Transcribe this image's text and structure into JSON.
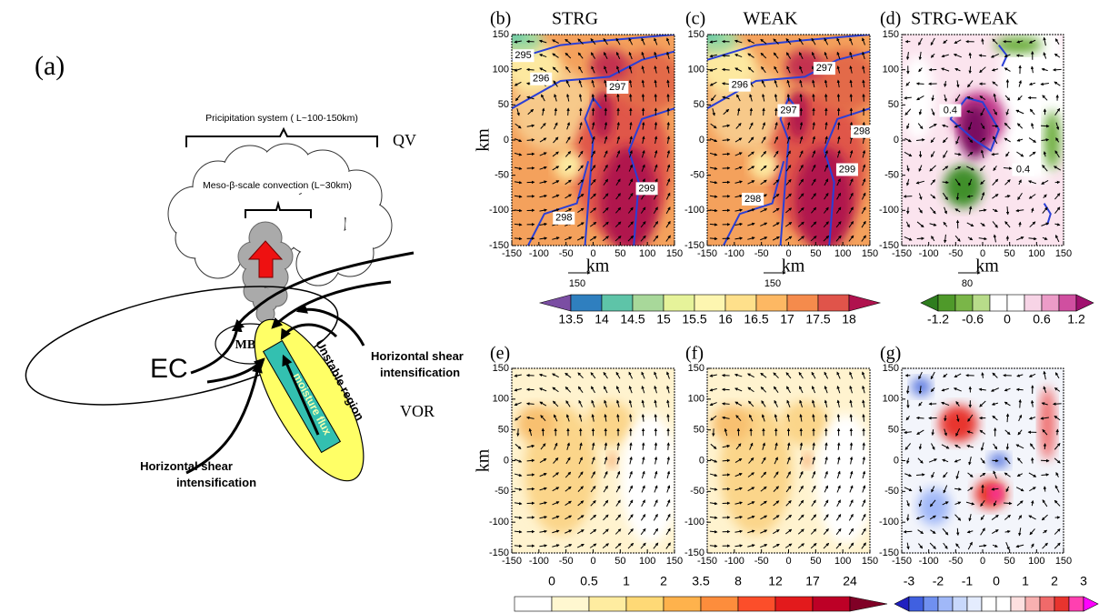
{
  "panel_a": {
    "label": "(a)",
    "precip_system": "Pricipitation system ( L~100-150km)",
    "qv": "QV",
    "convection": "Meso-β-scale convection (L~30km)",
    "mbv": "MBV",
    "ec": "EC",
    "unstable": "Unstable region",
    "moisture": "moisture flux",
    "shear_right": [
      "Horizontal shear",
      "intensification"
    ],
    "shear_bottom": [
      "Horizontal shear",
      "intensification"
    ],
    "vor": "VOR"
  },
  "axis": {
    "ticks": [
      -150,
      -100,
      -50,
      0,
      50,
      100,
      150
    ],
    "label": "km"
  },
  "panels": [
    {
      "label": "(b)",
      "title": "STRG",
      "contour_labels": [
        "295",
        "296",
        "297",
        "298",
        "299"
      ],
      "ref_vector": "150"
    },
    {
      "label": "(c)",
      "title": "WEAK",
      "contour_labels": [
        "296",
        "297",
        "297",
        "298",
        "299",
        "298"
      ],
      "ref_vector": "150"
    },
    {
      "label": "(d)",
      "title": "STRG-WEAK",
      "contour_labels": [
        "0.4",
        "0.4"
      ],
      "ref_vector": "80"
    },
    {
      "label": "(e)"
    },
    {
      "label": "(f)"
    },
    {
      "label": "(g)"
    }
  ],
  "colorbars": [
    {
      "labels": [
        13.5,
        14,
        14.5,
        15,
        15.5,
        16,
        16.5,
        17,
        17.5,
        18
      ],
      "colors": [
        "#7b4ea3",
        "#2f7fbf",
        "#5ec4a8",
        "#a8d89a",
        "#e6f39a",
        "#fdf6b0",
        "#fee08b",
        "#fdb863",
        "#f58b4c",
        "#e0544a",
        "#b0124e"
      ]
    },
    {
      "labels": [
        -1.2,
        -0.6,
        0,
        0.6,
        1.2
      ],
      "colors": [
        "#2e7d1e",
        "#4f9a2a",
        "#7ab648",
        "#b8dc8a",
        "#ffffff",
        "#ffffff",
        "#f7d4e6",
        "#ec9cc8",
        "#d04fa0",
        "#a0106e"
      ]
    },
    {
      "labels": [
        0,
        0.5,
        1,
        2,
        3.5,
        8,
        12,
        17,
        24
      ],
      "colors": [
        "#ffffff",
        "#fff7d0",
        "#feeca0",
        "#fed976",
        "#feb24c",
        "#fd8d3c",
        "#fc4e2a",
        "#e31a1c",
        "#bd0026",
        "#800026"
      ]
    },
    {
      "labels": [
        -3,
        -2,
        -1,
        0,
        1,
        2,
        3
      ],
      "colors": [
        "#2020c0",
        "#4060e0",
        "#7090f0",
        "#a0b8f8",
        "#c8d8fc",
        "#e4ecfe",
        "#ffffff",
        "#ffffff",
        "#fde0e0",
        "#f8b0b0",
        "#f06a6a",
        "#e8342e",
        "#ff40b0",
        "#ff00ff"
      ]
    }
  ]
}
